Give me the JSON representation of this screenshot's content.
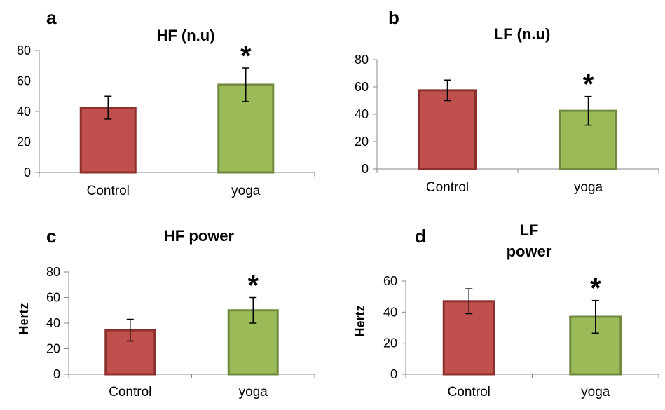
{
  "colors": {
    "control_fill": "#c0504d",
    "control_stroke": "#8b302d",
    "yoga_fill": "#9bbb59",
    "yoga_stroke": "#71893f",
    "axis": "#888888"
  },
  "chart_data": [
    {
      "type": "bar",
      "panel": "a",
      "title": "HF (n.u)",
      "ylabel": "",
      "ylim": [
        0,
        80
      ],
      "yticks": [
        0,
        20,
        40,
        60,
        80
      ],
      "categories": [
        "Control",
        "yoga"
      ],
      "values": [
        42.5,
        57.5
      ],
      "errors": [
        7.5,
        11
      ],
      "significance": [
        "",
        "*"
      ]
    },
    {
      "type": "bar",
      "panel": "b",
      "title": "LF (n.u)",
      "ylabel": "",
      "ylim": [
        0,
        80
      ],
      "yticks": [
        0,
        20,
        40,
        60,
        80
      ],
      "categories": [
        "Control",
        "yoga"
      ],
      "values": [
        57.5,
        42.5
      ],
      "errors": [
        7.5,
        10.5
      ],
      "significance": [
        "",
        "*"
      ]
    },
    {
      "type": "bar",
      "panel": "c",
      "title": "HF power",
      "ylabel": "Hertz",
      "ylim": [
        0,
        80
      ],
      "yticks": [
        0,
        20,
        40,
        60,
        80
      ],
      "categories": [
        "Control",
        "yoga"
      ],
      "values": [
        34.5,
        50
      ],
      "errors": [
        8.5,
        10
      ],
      "significance": [
        "",
        "*"
      ]
    },
    {
      "type": "bar",
      "panel": "d",
      "title": [
        "LF",
        "power"
      ],
      "ylabel": "Hertz",
      "ylim": [
        0,
        60
      ],
      "yticks": [
        0,
        20,
        40,
        60
      ],
      "categories": [
        "Control",
        "yoga"
      ],
      "values": [
        47,
        37
      ],
      "errors": [
        8,
        10.5
      ],
      "significance": [
        "",
        "*"
      ]
    }
  ]
}
